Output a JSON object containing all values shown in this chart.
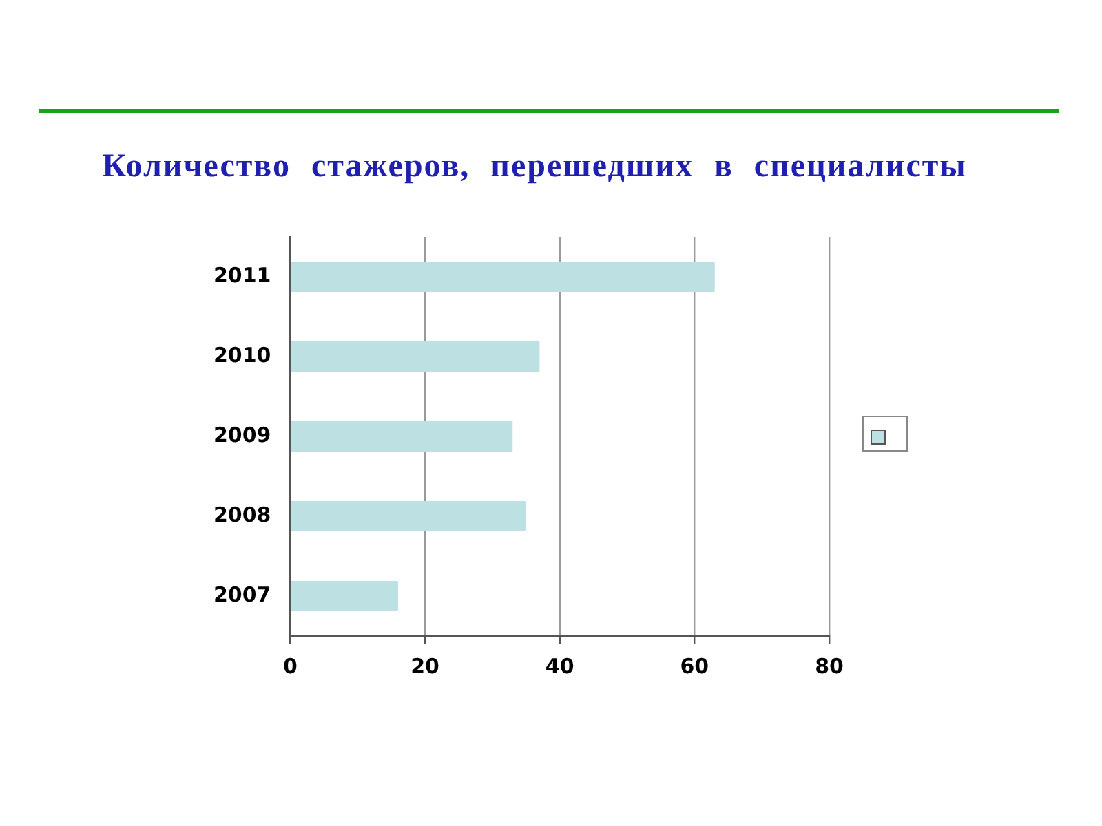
{
  "chart_data": {
    "type": "bar",
    "orientation": "horizontal",
    "title": "Количество стажеров, перешедших в специалисты",
    "categories": [
      "2011",
      "2010",
      "2009",
      "2008",
      "2007"
    ],
    "values": [
      63,
      37,
      33,
      35,
      16
    ],
    "color": "#bde0e3",
    "xlim": [
      0,
      80
    ],
    "xticks": [
      0,
      20,
      40,
      60,
      80
    ],
    "grid": "x"
  }
}
